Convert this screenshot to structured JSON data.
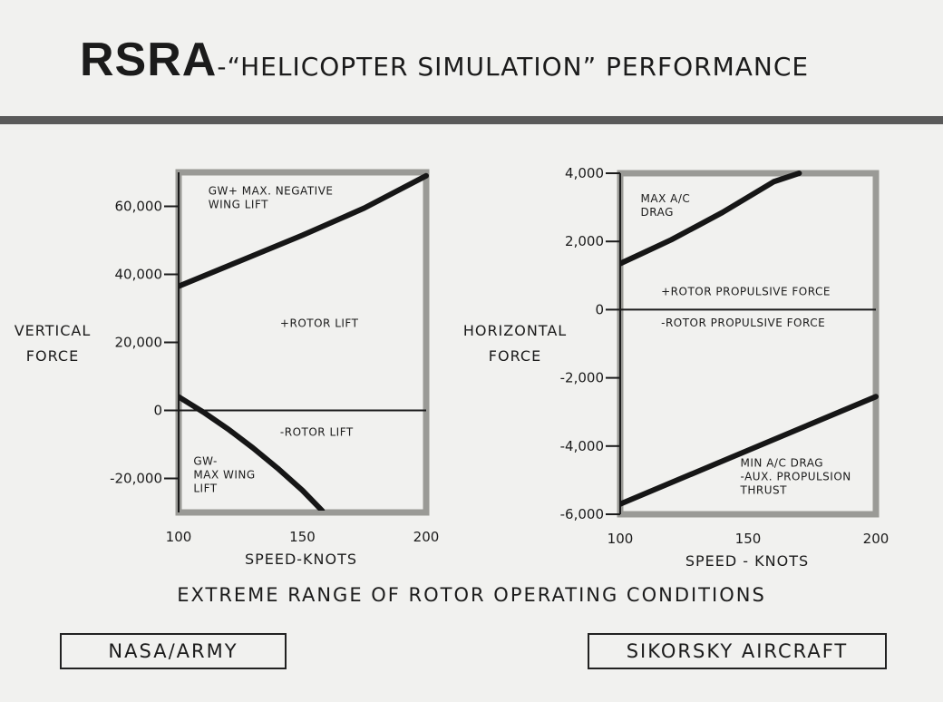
{
  "page": {
    "title_bold": "RSRA",
    "title_rest": "-“HELICOPTER SIMULATION” PERFORMANCE",
    "caption": "EXTREME RANGE OF ROTOR OPERATING CONDITIONS",
    "credit_left": "NASA/ARMY",
    "credit_right": "SIKORSKY AIRCRAFT"
  },
  "colors": {
    "background": "#f1f1ef",
    "ink": "#1b1b1b",
    "frame": "#9a9a96",
    "rule": "#5a5a5a"
  },
  "chart_data": [
    {
      "type": "line",
      "title": "",
      "xlabel": "SPEED-KNOTS",
      "ylabel": [
        "VERTICAL",
        "FORCE"
      ],
      "xlim": [
        100,
        200
      ],
      "ylim": [
        -30000,
        70000
      ],
      "xticks": [
        "100",
        "150",
        "200"
      ],
      "xtick_values": [
        100,
        150,
        200
      ],
      "yticks": [
        "60,000",
        "40,000",
        "20,000",
        "0",
        "-20,000"
      ],
      "ytick_values": [
        60000,
        40000,
        20000,
        0,
        -20000
      ],
      "grid": false,
      "zero_line": true,
      "series": [
        {
          "name": "",
          "x": [
            100,
            125,
            150,
            175,
            200
          ],
          "y": [
            36500,
            44000,
            51500,
            59500,
            69000
          ]
        },
        {
          "name": "",
          "x": [
            100,
            110,
            120,
            130,
            140,
            150,
            158
          ],
          "y": [
            4000,
            -500,
            -5500,
            -11000,
            -17000,
            -23500,
            -29500
          ]
        }
      ],
      "annotations": [
        {
          "lines": [
            "GW+ MAX. NEGATIVE",
            "WING LIFT"
          ],
          "x": 112,
          "y": 63500
        },
        {
          "lines": [
            "+ROTOR LIFT"
          ],
          "x": 141,
          "y": 24500
        },
        {
          "lines": [
            "-ROTOR LIFT"
          ],
          "x": 141,
          "y": -7500
        },
        {
          "lines": [
            "GW-",
            "MAX WING",
            "LIFT"
          ],
          "x": 106,
          "y": -16000
        }
      ]
    },
    {
      "type": "line",
      "title": "",
      "xlabel": "SPEED - KNOTS",
      "ylabel": [
        "HORIZONTAL",
        "FORCE"
      ],
      "xlim": [
        100,
        200
      ],
      "ylim": [
        -6000,
        4000
      ],
      "xticks": [
        "100",
        "150",
        "200"
      ],
      "xtick_values": [
        100,
        150,
        200
      ],
      "yticks": [
        "4,000",
        "2,000",
        "0",
        "-2,000",
        "-4,000",
        "-6,000"
      ],
      "ytick_values": [
        4000,
        2000,
        0,
        -2000,
        -4000,
        -6000
      ],
      "grid": false,
      "zero_line": true,
      "series": [
        {
          "name": "",
          "x": [
            100,
            110,
            120,
            130,
            140,
            150,
            160,
            170
          ],
          "y": [
            1350,
            1700,
            2050,
            2450,
            2850,
            3300,
            3750,
            4000
          ]
        },
        {
          "name": "",
          "x": [
            100,
            200
          ],
          "y": [
            -5700,
            -2550
          ]
        }
      ],
      "annotations": [
        {
          "lines": [
            "MAX A/C",
            "DRAG"
          ],
          "x": 108,
          "y": 3150
        },
        {
          "lines": [
            "+ROTOR PROPULSIVE FORCE"
          ],
          "x": 116,
          "y": 420
        },
        {
          "lines": [
            "-ROTOR PROPULSIVE FORCE"
          ],
          "x": 116,
          "y": -500
        },
        {
          "lines": [
            "MIN A/C DRAG",
            "-AUX. PROPULSION",
            "THRUST"
          ],
          "x": 147,
          "y": -4600
        }
      ]
    }
  ]
}
